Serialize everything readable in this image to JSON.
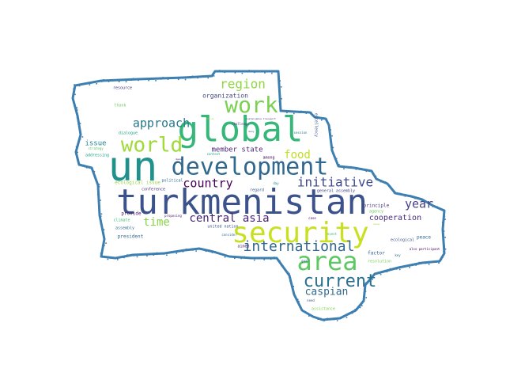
{
  "outline_color": "#3d7fb0",
  "words": [
    {
      "text": "turkmenistan",
      "color": "#3b528b"
    },
    {
      "text": "un",
      "color": "#21918c"
    },
    {
      "text": "global",
      "color": "#35b779"
    },
    {
      "text": "security",
      "color": "#c8e020"
    },
    {
      "text": "development",
      "color": "#31688e"
    },
    {
      "text": "area",
      "color": "#5ec962"
    },
    {
      "text": "work",
      "color": "#7ad151"
    },
    {
      "text": "world",
      "color": "#a0da39"
    },
    {
      "text": "current",
      "color": "#2c728e"
    },
    {
      "text": "international",
      "color": "#31688e"
    },
    {
      "text": "initiative",
      "color": "#3e4989"
    },
    {
      "text": "country",
      "color": "#440154"
    },
    {
      "text": "central asia",
      "color": "#482173"
    },
    {
      "text": "region",
      "color": "#90d743"
    },
    {
      "text": "approach",
      "color": "#2a788e"
    },
    {
      "text": "food",
      "color": "#bddf26"
    },
    {
      "text": "time",
      "color": "#86d549"
    },
    {
      "text": "year",
      "color": "#433e85"
    },
    {
      "text": "caspian",
      "color": "#31688e"
    },
    {
      "text": "cooperation",
      "color": "#472d7b"
    },
    {
      "text": "organization",
      "color": "#414487"
    },
    {
      "text": "member state",
      "color": "#482576"
    },
    {
      "text": "issue",
      "color": "#26828e"
    },
    {
      "text": "ecological issue",
      "color": "#95d840"
    },
    {
      "text": "resource",
      "color": "#46337e"
    },
    {
      "text": "thank",
      "color": "#6ccd5a"
    },
    {
      "text": "dialogue",
      "color": "#20a486"
    },
    {
      "text": "addressing",
      "color": "#1f9e89"
    },
    {
      "text": "strategy",
      "color": "#50c46a"
    },
    {
      "text": "conference",
      "color": "#46337e"
    },
    {
      "text": "political",
      "color": "#31688e"
    },
    {
      "text": "provide",
      "color": "#481668"
    },
    {
      "text": "climate",
      "color": "#3dbc74"
    },
    {
      "text": "assembly",
      "color": "#2d708e"
    },
    {
      "text": "president",
      "color": "#31688e"
    },
    {
      "text": "united nation",
      "color": "#3b528b"
    },
    {
      "text": "consider",
      "color": "#2a788e"
    },
    {
      "text": "aimed",
      "color": "#482878"
    },
    {
      "text": "general assembly",
      "color": "#3e4989"
    },
    {
      "text": "principle",
      "color": "#453882"
    },
    {
      "text": "factor",
      "color": "#34618d"
    },
    {
      "text": "agency",
      "color": "#65cb5e"
    },
    {
      "text": "ecological",
      "color": "#39568c"
    },
    {
      "text": "peace",
      "color": "#31688e"
    },
    {
      "text": "resolution",
      "color": "#75d054"
    },
    {
      "text": "assistance",
      "color": "#7fd34e"
    },
    {
      "text": "challenge",
      "color": "#443a83"
    },
    {
      "text": "among",
      "color": "#440154"
    },
    {
      "text": "regard",
      "color": "#375b8d"
    },
    {
      "text": "excellency",
      "color": "#3b528b"
    },
    {
      "text": "sustainable transport",
      "color": "#46337e"
    },
    {
      "text": "context",
      "color": "#1fa187"
    },
    {
      "text": "need",
      "color": "#3b528b"
    },
    {
      "text": "also participant",
      "color": "#450457"
    },
    {
      "text": "key",
      "color": "#2d708e"
    },
    {
      "text": "goal",
      "color": "#355f8d"
    },
    {
      "text": "event",
      "color": "#35b779"
    },
    {
      "text": "case",
      "color": "#440154"
    },
    {
      "text": "day",
      "color": "#228d8d"
    },
    {
      "text": "proposing",
      "color": "#481769"
    },
    {
      "text": "forum",
      "color": "#9fda3a"
    },
    {
      "text": "many",
      "color": "#3e4989"
    },
    {
      "text": "session",
      "color": "#2a788e"
    },
    {
      "text": "mean",
      "color": "#440154"
    },
    {
      "text": "ready",
      "color": "#a5db36"
    }
  ]
}
